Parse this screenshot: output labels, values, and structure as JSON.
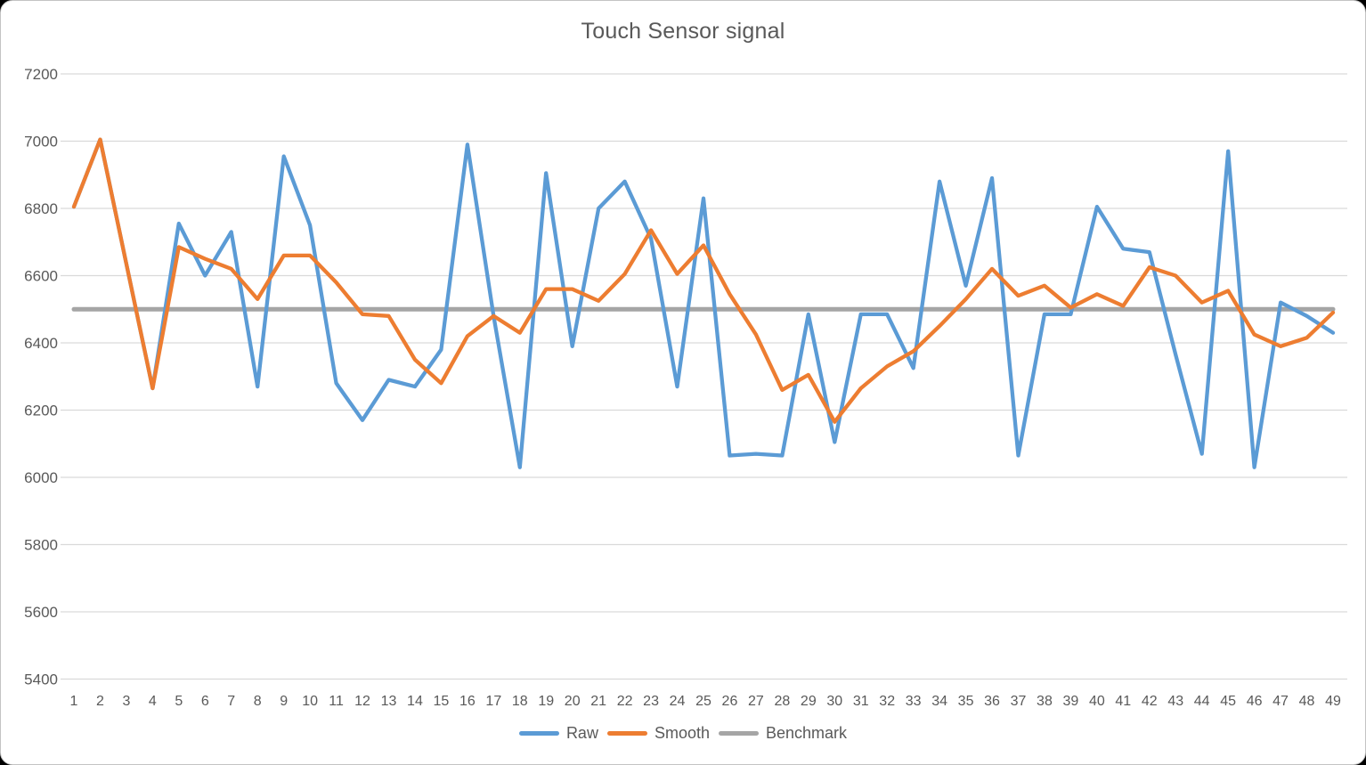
{
  "chart_data": {
    "type": "line",
    "title": "Touch Sensor signal",
    "x_labels": [
      1,
      2,
      3,
      4,
      5,
      6,
      7,
      8,
      9,
      10,
      11,
      12,
      13,
      14,
      15,
      16,
      17,
      18,
      19,
      20,
      21,
      22,
      23,
      24,
      25,
      26,
      27,
      28,
      29,
      30,
      31,
      32,
      33,
      34,
      35,
      36,
      37,
      38,
      39,
      40,
      41,
      42,
      43,
      44,
      45,
      46,
      47,
      48,
      49
    ],
    "y_axis": {
      "min": 5400,
      "max": 7200,
      "step": 200,
      "tick_labels": [
        "7200",
        "7000",
        "6800",
        "6600",
        "6400",
        "6200",
        "6000",
        "5800",
        "5600",
        "5400"
      ]
    },
    "grid": true,
    "legend_position": "bottom",
    "series": [
      {
        "name": "Raw",
        "color": "#5B9BD5",
        "values": [
          6805,
          7005,
          6635,
          6265,
          6755,
          6600,
          6730,
          6270,
          6955,
          6750,
          6280,
          6170,
          6290,
          6270,
          6380,
          6990,
          6480,
          6030,
          6905,
          6390,
          6800,
          6880,
          6710,
          6270,
          6830,
          6065,
          6070,
          6065,
          6485,
          6105,
          6485,
          6485,
          6325,
          6880,
          6570,
          6890,
          6065,
          6485,
          6485,
          6805,
          6680,
          6670,
          6365,
          6070,
          6970,
          6030,
          6520,
          6480,
          6430
        ]
      },
      {
        "name": "Smooth",
        "color": "#ED7D31",
        "values": [
          6805,
          7005,
          6635,
          6265,
          6685,
          6650,
          6620,
          6530,
          6660,
          6660,
          6580,
          6485,
          6480,
          6350,
          6280,
          6420,
          6480,
          6430,
          6560,
          6560,
          6525,
          6605,
          6735,
          6605,
          6690,
          6545,
          6425,
          6260,
          6305,
          6165,
          6265,
          6330,
          6375,
          6450,
          6530,
          6620,
          6540,
          6570,
          6505,
          6545,
          6510,
          6625,
          6600,
          6520,
          6555,
          6425,
          6390,
          6415,
          6490
        ]
      },
      {
        "name": "Benchmark",
        "color": "#A5A5A5",
        "constant": 6500
      }
    ],
    "colors": {
      "gridline": "#D9D9D9",
      "text": "#595959",
      "title": "#595959"
    }
  }
}
